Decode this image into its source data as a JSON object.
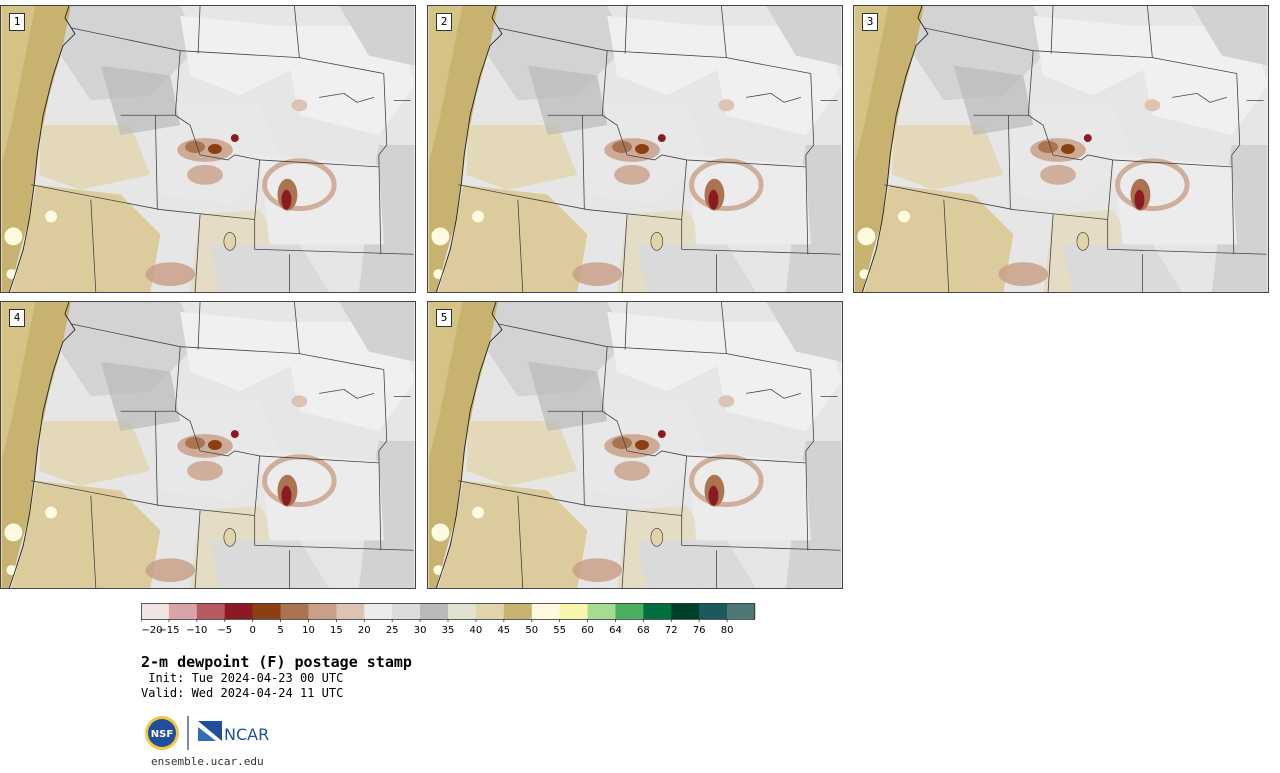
{
  "panels": [
    {
      "label": "1"
    },
    {
      "label": "2"
    },
    {
      "label": "3"
    },
    {
      "label": "4"
    },
    {
      "label": "5"
    }
  ],
  "colorbar": {
    "colors": [
      "#f3e4e4",
      "#d9a4a8",
      "#b55a60",
      "#8c1a22",
      "#8a4012",
      "#aa7450",
      "#c8a088",
      "#dcc3b3",
      "#ececec",
      "#dcdcdc",
      "#b9b9b9",
      "#e2e2d2",
      "#e2d4aa",
      "#c8b270",
      "#fefae0",
      "#f8f6aa",
      "#a6dc90",
      "#4aaf60",
      "#007040",
      "#00402a",
      "#1a5a5a",
      "#4e7878"
    ],
    "tick_labels": [
      "−20",
      "−15",
      "−10",
      "−5",
      "0",
      "5",
      "10",
      "15",
      "20",
      "25",
      "30",
      "35",
      "40",
      "45",
      "50",
      "55",
      "60",
      "64",
      "68",
      "72",
      "76",
      "80"
    ]
  },
  "title": "2-m dewpoint (F) postage stamp",
  "init_line": " Init: Tue 2024-04-23 00 UTC",
  "valid_line": "Valid: Wed 2024-04-24 11 UTC",
  "logos": {
    "nsf_text": "NSF",
    "ncar_text": "NCAR"
  },
  "website": "ensemble.ucar.edu"
}
